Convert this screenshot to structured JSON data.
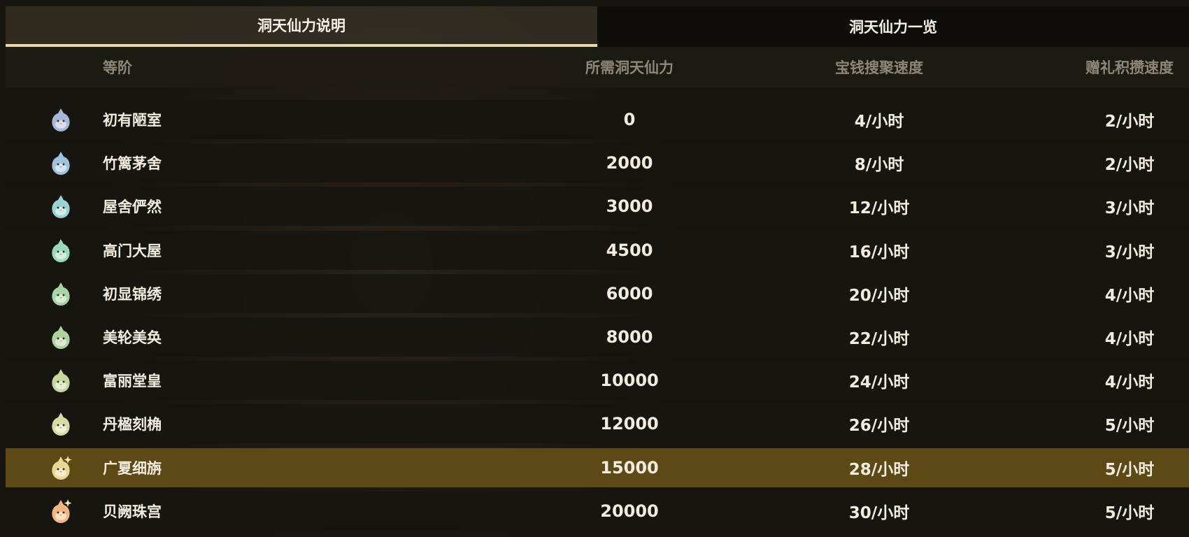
{
  "tabs": [
    {
      "label": "洞天仙力说明",
      "active": true
    },
    {
      "label": "洞天仙力一览",
      "active": false
    }
  ],
  "columns": {
    "rank": "等阶",
    "required": "所需洞天仙力",
    "coin_rate": "宝钱搜聚速度",
    "gift_rate": "赠礼积攒速度"
  },
  "rows": [
    {
      "icon": "penguin-rank-icon",
      "color": "#a9b6d8",
      "name": "初有陋室",
      "required": "0",
      "coin": "4/小时",
      "gift": "2/小时"
    },
    {
      "icon": "penguin-rank-icon",
      "color": "#9fc3dc",
      "name": "竹篱茅舍",
      "required": "2000",
      "coin": "8/小时",
      "gift": "2/小时"
    },
    {
      "icon": "penguin-rank-icon",
      "color": "#98d4d2",
      "name": "屋舍俨然",
      "required": "3000",
      "coin": "12/小时",
      "gift": "3/小时"
    },
    {
      "icon": "penguin-rank-icon",
      "color": "#9bd8bc",
      "name": "高门大屋",
      "required": "4500",
      "coin": "16/小时",
      "gift": "3/小时"
    },
    {
      "icon": "penguin-rank-icon",
      "color": "#a6d4a6",
      "name": "初显锦绣",
      "required": "6000",
      "coin": "20/小时",
      "gift": "4/小时"
    },
    {
      "icon": "penguin-rank-icon",
      "color": "#b0d29e",
      "name": "美轮美奂",
      "required": "8000",
      "coin": "22/小时",
      "gift": "4/小时"
    },
    {
      "icon": "penguin-rank-icon",
      "color": "#c6d8a0",
      "name": "富丽堂皇",
      "required": "10000",
      "coin": "24/小时",
      "gift": "4/小时"
    },
    {
      "icon": "penguin-rank-icon",
      "color": "#d8dca4",
      "name": "丹楹刻桷",
      "required": "12000",
      "coin": "26/小时",
      "gift": "5/小时"
    },
    {
      "icon": "penguin-sparkle-icon",
      "color": "#e8d890",
      "name": "广夏细旃",
      "required": "15000",
      "coin": "28/小时",
      "gift": "5/小时",
      "highlighted": true
    },
    {
      "icon": "penguin-sparkle-icon",
      "color": "#f0b880",
      "name": "贝阙珠宫",
      "required": "20000",
      "coin": "30/小时",
      "gift": "5/小时"
    }
  ]
}
